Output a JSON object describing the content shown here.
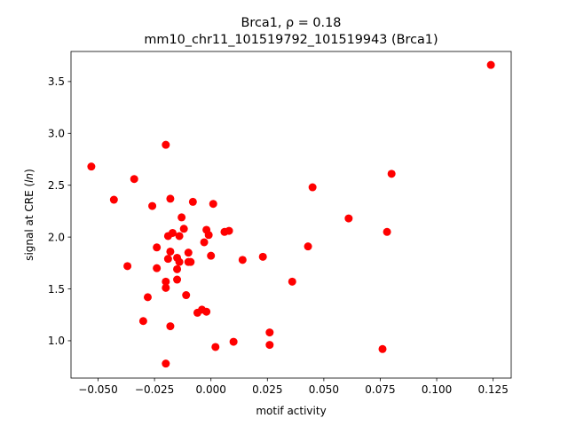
{
  "chart_data": {
    "type": "scatter",
    "title_line1": "Brca1, ρ = 0.18",
    "title_line2": "mm10_chr11_101519792_101519943 (Brca1)",
    "xlabel": "motif activity",
    "ylabel_prefix": "signal at CRE (",
    "ylabel_italic": "ln",
    "ylabel_suffix": ")",
    "xlim": [
      -0.062,
      0.133
    ],
    "ylim": [
      0.64,
      3.79
    ],
    "xticks": [
      -0.05,
      -0.025,
      0.0,
      0.025,
      0.05,
      0.075,
      0.1,
      0.125
    ],
    "xtick_labels": [
      "−0.050",
      "−0.025",
      "0.000",
      "0.025",
      "0.050",
      "0.075",
      "0.100",
      "0.125"
    ],
    "yticks": [
      1.0,
      1.5,
      2.0,
      2.5,
      3.0,
      3.5
    ],
    "ytick_labels": [
      "1.0",
      "1.5",
      "2.0",
      "2.5",
      "3.0",
      "3.5"
    ],
    "grid": false,
    "marker_color": "#ff0000",
    "points": [
      [
        -0.053,
        2.68
      ],
      [
        -0.043,
        2.36
      ],
      [
        -0.037,
        1.72
      ],
      [
        -0.034,
        2.56
      ],
      [
        -0.03,
        1.19
      ],
      [
        -0.028,
        1.42
      ],
      [
        -0.026,
        2.3
      ],
      [
        -0.024,
        1.9
      ],
      [
        -0.024,
        1.7
      ],
      [
        -0.02,
        2.89
      ],
      [
        -0.02,
        1.57
      ],
      [
        -0.02,
        1.51
      ],
      [
        -0.02,
        0.78
      ],
      [
        -0.019,
        1.79
      ],
      [
        -0.019,
        2.01
      ],
      [
        -0.018,
        1.86
      ],
      [
        -0.018,
        2.37
      ],
      [
        -0.018,
        1.14
      ],
      [
        -0.017,
        2.04
      ],
      [
        -0.015,
        1.8
      ],
      [
        -0.015,
        1.69
      ],
      [
        -0.015,
        1.59
      ],
      [
        -0.014,
        1.76
      ],
      [
        -0.014,
        2.01
      ],
      [
        -0.013,
        2.19
      ],
      [
        -0.012,
        2.08
      ],
      [
        -0.011,
        1.44
      ],
      [
        -0.01,
        1.76
      ],
      [
        -0.01,
        1.85
      ],
      [
        -0.009,
        1.76
      ],
      [
        -0.008,
        2.34
      ],
      [
        -0.006,
        1.27
      ],
      [
        -0.004,
        1.3
      ],
      [
        -0.003,
        1.95
      ],
      [
        -0.002,
        1.28
      ],
      [
        -0.002,
        2.07
      ],
      [
        -0.001,
        2.02
      ],
      [
        0.0,
        1.82
      ],
      [
        0.001,
        2.32
      ],
      [
        0.002,
        0.94
      ],
      [
        0.006,
        2.05
      ],
      [
        0.008,
        2.06
      ],
      [
        0.01,
        0.99
      ],
      [
        0.014,
        1.78
      ],
      [
        0.023,
        1.81
      ],
      [
        0.026,
        1.08
      ],
      [
        0.026,
        0.96
      ],
      [
        0.036,
        1.57
      ],
      [
        0.043,
        1.91
      ],
      [
        0.045,
        2.48
      ],
      [
        0.061,
        2.18
      ],
      [
        0.076,
        0.92
      ],
      [
        0.078,
        2.05
      ],
      [
        0.08,
        2.61
      ],
      [
        0.124,
        3.66
      ]
    ]
  }
}
